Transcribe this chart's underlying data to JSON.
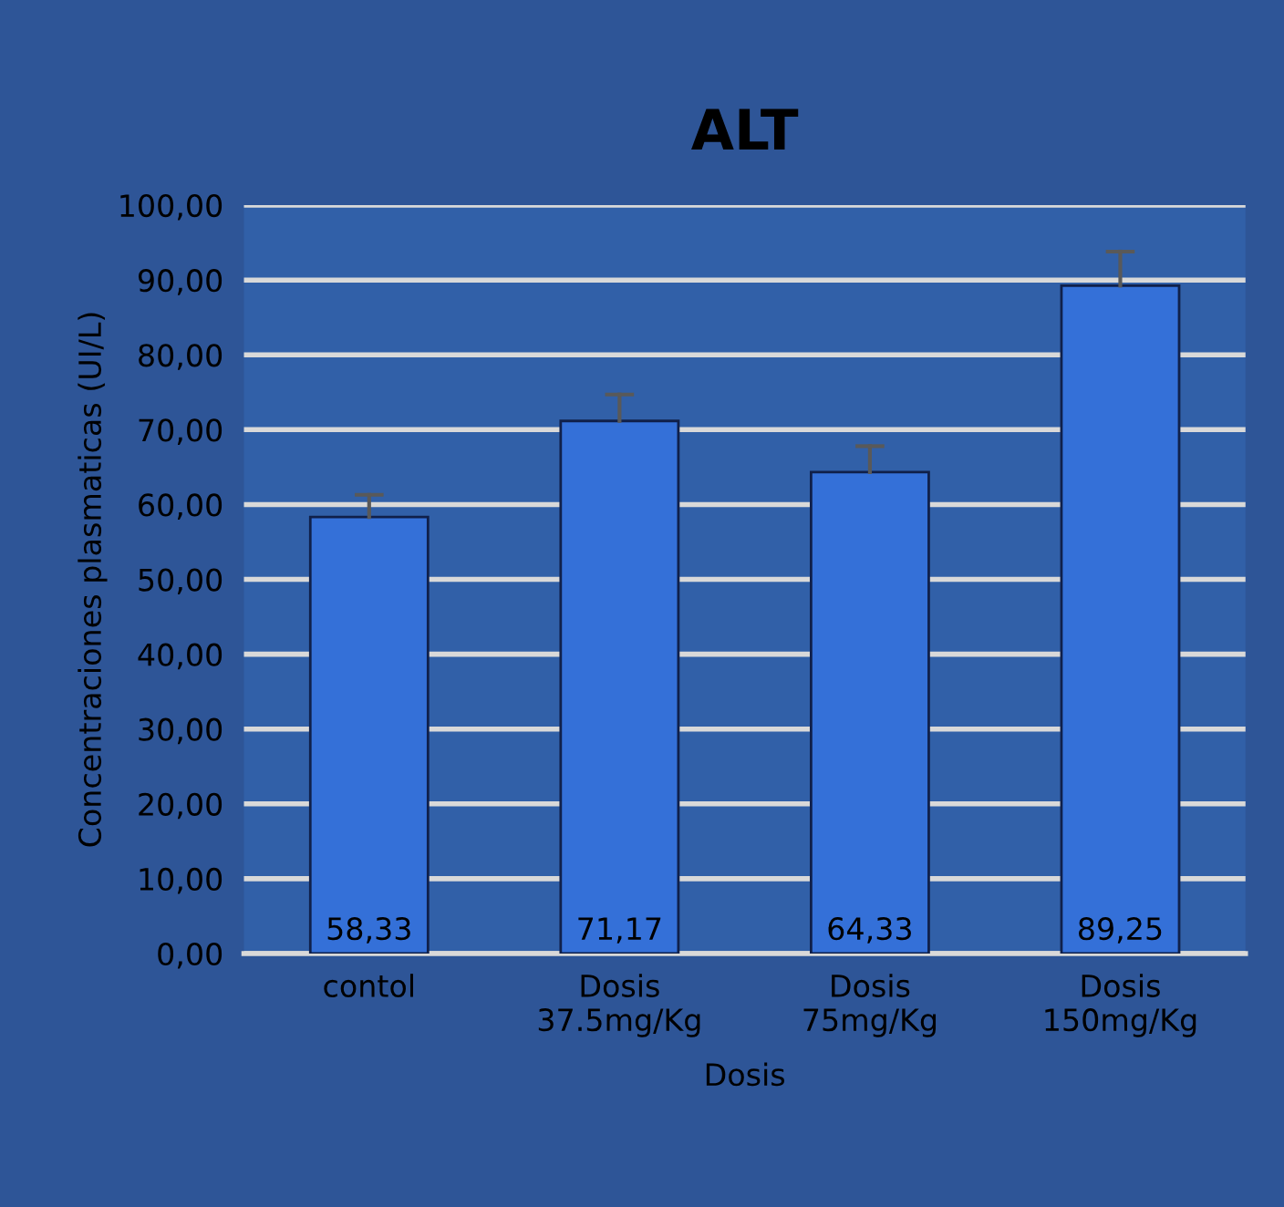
{
  "chart_data": {
    "type": "bar",
    "title": "ALT",
    "xlabel": "Dosis",
    "ylabel": "Concentraciones plasmaticas (UI/L)",
    "categories": [
      "contol",
      "Dosis\n37.5mg/Kg",
      "Dosis\n75mg/Kg",
      "Dosis\n150mg/Kg"
    ],
    "values": [
      58.33,
      71.17,
      64.33,
      89.25
    ],
    "value_labels": [
      "58,33",
      "71,17",
      "64,33",
      "89,25"
    ],
    "errors": [
      [
        58.33,
        61.3
      ],
      [
        71.17,
        74.7
      ],
      [
        64.33,
        67.8
      ],
      [
        89.25,
        93.8
      ]
    ],
    "color": "#3470d8",
    "ylim": [
      0,
      100
    ],
    "yticks": [
      {
        "value": 0,
        "label": "0,00"
      },
      {
        "value": 10,
        "label": "10,00"
      },
      {
        "value": 20,
        "label": "20,00"
      },
      {
        "value": 30,
        "label": "30,00"
      },
      {
        "value": 40,
        "label": "40,00"
      },
      {
        "value": 50,
        "label": "50,00"
      },
      {
        "value": 60,
        "label": "60,00"
      },
      {
        "value": 70,
        "label": "70,00"
      },
      {
        "value": 80,
        "label": "80,00"
      },
      {
        "value": 90,
        "label": "90,00"
      },
      {
        "value": 100,
        "label": "100,00"
      }
    ],
    "grid": "y",
    "legend": false
  }
}
